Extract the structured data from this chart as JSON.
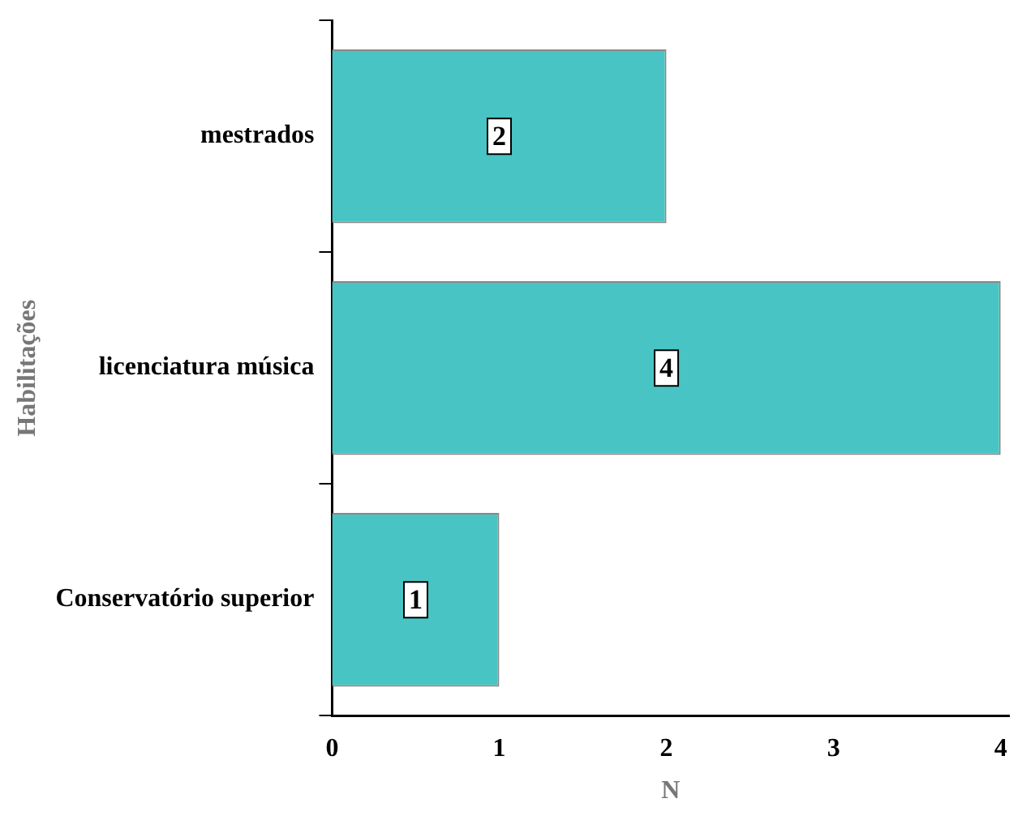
{
  "chart_data": {
    "type": "bar",
    "orientation": "horizontal",
    "categories": [
      "mestrados",
      "licenciatura música",
      "Conservatório superior"
    ],
    "values": [
      2,
      4,
      1
    ],
    "color": "#48c4c4",
    "xlim": [
      0,
      4.05
    ],
    "xticks": [
      0,
      1,
      2,
      3,
      4
    ],
    "xlabel": "N",
    "ylabel": "Habilitações",
    "grid": false,
    "legend": false,
    "data_labels": true
  }
}
